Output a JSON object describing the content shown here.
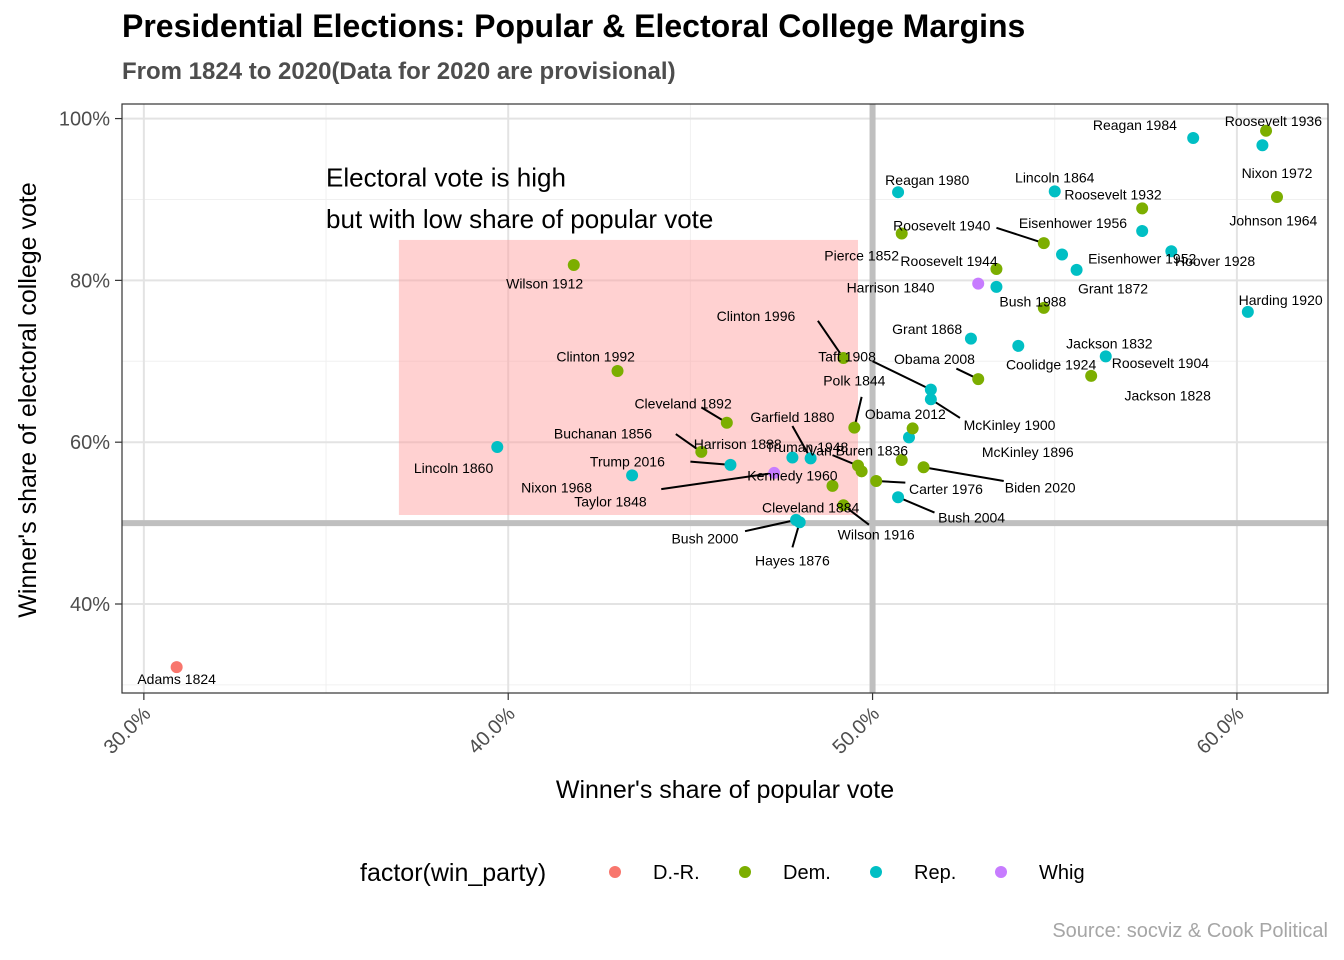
{
  "title": "Presidential Elections: Popular & Electoral College Margins",
  "subtitle": "From 1824 to 2020(Data for 2020 are provisional)",
  "source": "Source: socviz & Cook Political",
  "chart_data": {
    "type": "scatter",
    "xlabel": "Winner's share of popular vote",
    "ylabel": "Winner's share of electoral college vote",
    "xlim": [
      29.4,
      62.5
    ],
    "ylim": [
      29.0,
      101.8
    ],
    "x_ticks": [
      30,
      40,
      50,
      60
    ],
    "x_tick_labels": [
      "30.0%",
      "40.0%",
      "50.0%",
      "60.0%"
    ],
    "y_ticks": [
      40,
      60,
      80,
      100
    ],
    "y_tick_labels": [
      "40%",
      "60%",
      "80%",
      "100%"
    ],
    "grid": true,
    "reference_lines": {
      "x": 50,
      "y": 50
    },
    "highlight_box": {
      "x": [
        37,
        49.6
      ],
      "y": [
        51,
        85
      ],
      "color": "#ff9999"
    },
    "annotation": [
      "Electoral vote is high",
      "but with low share of popular vote"
    ],
    "legend": {
      "title": "factor(win_party)",
      "position": "bottom",
      "entries": [
        {
          "name": "D.-R.",
          "color": "#F8766D"
        },
        {
          "name": "Dem.",
          "color": "#7CAE00"
        },
        {
          "name": "Rep.",
          "color": "#00BFC4"
        },
        {
          "name": "Whig",
          "color": "#C77CFF"
        }
      ]
    },
    "points": [
      {
        "label": "Adams 1824",
        "party": "D.-R.",
        "x": 30.9,
        "y": 32.2,
        "lx": 30.9,
        "ly": 30.7
      },
      {
        "label": "Jackson 1828",
        "party": "Dem.",
        "x": 56.0,
        "y": 68.2,
        "lx": 58.1,
        "ly": 65.8,
        "lanchor": "middle"
      },
      {
        "label": "Jackson 1832",
        "party": "Dem.",
        "x": 54.7,
        "y": 76.6,
        "lx": 56.5,
        "ly": 72.2,
        "lanchor": "middle"
      },
      {
        "label": "Van Buren 1836",
        "party": "Dem.",
        "x": 50.8,
        "y": 57.8,
        "lx": 49.6,
        "ly": 59.0,
        "lanchor": "middle"
      },
      {
        "label": "Harrison 1840",
        "party": "Whig",
        "x": 52.9,
        "y": 79.6,
        "lx": 51.7,
        "ly": 79.1,
        "lanchor": "end"
      },
      {
        "label": "Polk 1844",
        "party": "Dem.",
        "x": 49.5,
        "y": 61.8,
        "lx": 49.5,
        "ly": 67.6,
        "lanchor": "middle",
        "leader": true,
        "lex": 49.7,
        "ley": 65.6
      },
      {
        "label": "Taylor 1848",
        "party": "Whig",
        "x": 47.3,
        "y": 56.2,
        "lx": 43.8,
        "ly": 52.7,
        "lanchor": "end",
        "leader": true,
        "lex": 44.2,
        "ley": 54.2
      },
      {
        "label": "Pierce 1852",
        "party": "Dem.",
        "x": 50.8,
        "y": 85.8,
        "lx": 49.7,
        "ly": 83.1,
        "lanchor": "middle"
      },
      {
        "label": "Buchanan 1856",
        "party": "Dem.",
        "x": 45.3,
        "y": 58.8,
        "lx": 42.6,
        "ly": 61.1,
        "lanchor": "middle",
        "leader": true,
        "lex": 44.6,
        "ley": 61.0
      },
      {
        "label": "Lincoln 1860",
        "party": "Rep.",
        "x": 39.7,
        "y": 59.4,
        "lx": 38.5,
        "ly": 56.8,
        "lanchor": "middle"
      },
      {
        "label": "Lincoln 1864",
        "party": "Rep.",
        "x": 55.0,
        "y": 91.0,
        "lx": 55.0,
        "ly": 92.7,
        "lanchor": "middle"
      },
      {
        "label": "Grant 1868",
        "party": "Rep.",
        "x": 52.7,
        "y": 72.8,
        "lx": 51.5,
        "ly": 74.0,
        "lanchor": "middle"
      },
      {
        "label": "Grant 1872",
        "party": "Rep.",
        "x": 55.6,
        "y": 81.3,
        "lx": 56.6,
        "ly": 79.0,
        "lanchor": "middle"
      },
      {
        "label": "Hayes 1876",
        "party": "Rep.",
        "x": 48.0,
        "y": 50.1,
        "lx": 47.8,
        "ly": 45.4,
        "lanchor": "middle",
        "leader": true,
        "lex": 47.8,
        "ley": 47.0
      },
      {
        "label": "Garfield 1880",
        "party": "Rep.",
        "x": 48.3,
        "y": 58.0,
        "lx": 47.8,
        "ly": 63.1,
        "lanchor": "middle",
        "leader": true,
        "lex": 47.8,
        "ley": 62.0
      },
      {
        "label": "Cleveland 1884",
        "party": "Dem.",
        "x": 48.9,
        "y": 54.6,
        "lx": 48.3,
        "ly": 51.9,
        "lanchor": "middle"
      },
      {
        "label": "Harrison 1888",
        "party": "Rep.",
        "x": 47.8,
        "y": 58.1,
        "lx": 46.3,
        "ly": 59.8,
        "lanchor": "middle"
      },
      {
        "label": "Cleveland 1892",
        "party": "Dem.",
        "x": 46.0,
        "y": 62.4,
        "lx": 44.8,
        "ly": 64.8,
        "lanchor": "middle",
        "leader": true,
        "lex": 45.3,
        "ley": 64.3
      },
      {
        "label": "McKinley 1896",
        "party": "Rep.",
        "x": 51.0,
        "y": 60.6,
        "lx": 53.0,
        "ly": 58.8,
        "lanchor": "start"
      },
      {
        "label": "McKinley 1900",
        "party": "Rep.",
        "x": 51.6,
        "y": 65.3,
        "lx": 52.5,
        "ly": 62.1,
        "lanchor": "start",
        "leader": true,
        "lex": 52.4,
        "ley": 63.0
      },
      {
        "label": "Roosevelt 1904",
        "party": "Rep.",
        "x": 56.4,
        "y": 70.6,
        "lx": 57.9,
        "ly": 69.8,
        "lanchor": "middle"
      },
      {
        "label": "Taft 1908",
        "party": "Rep.",
        "x": 51.6,
        "y": 66.5,
        "lx": 49.3,
        "ly": 70.6,
        "lanchor": "middle",
        "leader": true,
        "lex": 50.0,
        "ley": 70.0
      },
      {
        "label": "Wilson 1912",
        "party": "Dem.",
        "x": 41.8,
        "y": 81.9,
        "lx": 41.0,
        "ly": 79.6,
        "lanchor": "middle"
      },
      {
        "label": "Wilson 1916",
        "party": "Dem.",
        "x": 49.2,
        "y": 52.2,
        "lx": 50.1,
        "ly": 48.6,
        "lanchor": "middle",
        "leader": true,
        "lex": 49.9,
        "ley": 49.8
      },
      {
        "label": "Harding 1920",
        "party": "Rep.",
        "x": 60.3,
        "y": 76.1,
        "lx": 61.2,
        "ly": 77.6,
        "lanchor": "middle"
      },
      {
        "label": "Coolidge 1924",
        "party": "Rep.",
        "x": 54.0,
        "y": 71.9,
        "lx": 54.9,
        "ly": 69.6,
        "lanchor": "middle"
      },
      {
        "label": "Hoover 1928",
        "party": "Rep.",
        "x": 58.2,
        "y": 83.6,
        "lx": 59.4,
        "ly": 82.4,
        "lanchor": "middle"
      },
      {
        "label": "Roosevelt 1932",
        "party": "Dem.",
        "x": 57.4,
        "y": 88.9,
        "lx": 56.6,
        "ly": 90.6,
        "lanchor": "middle"
      },
      {
        "label": "Roosevelt 1936",
        "party": "Dem.",
        "x": 60.8,
        "y": 98.5,
        "lx": 61.0,
        "ly": 99.7,
        "lanchor": "middle"
      },
      {
        "label": "Roosevelt 1940",
        "party": "Dem.",
        "x": 54.7,
        "y": 84.6,
        "lx": 51.9,
        "ly": 86.8,
        "lanchor": "middle",
        "leader": true,
        "lex": 53.4,
        "ley": 86.5
      },
      {
        "label": "Roosevelt 1944",
        "party": "Dem.",
        "x": 53.4,
        "y": 81.4,
        "lx": 52.1,
        "ly": 82.4,
        "lanchor": "middle"
      },
      {
        "label": "Truman 1948",
        "party": "Dem.",
        "x": 49.6,
        "y": 57.1,
        "lx": 48.2,
        "ly": 59.4,
        "lanchor": "middle",
        "leader": true,
        "lex": 48.9,
        "ley": 58.4
      },
      {
        "label": "Eisenhower 1952",
        "party": "Rep.",
        "x": 55.2,
        "y": 83.2,
        "lx": 57.4,
        "ly": 82.7,
        "lanchor": "middle"
      },
      {
        "label": "Eisenhower 1956",
        "party": "Rep.",
        "x": 57.4,
        "y": 86.1,
        "lx": 55.5,
        "ly": 87.1,
        "lanchor": "middle"
      },
      {
        "label": "Kennedy 1960",
        "party": "Dem.",
        "x": 49.7,
        "y": 56.4,
        "lx": 47.8,
        "ly": 55.9,
        "lanchor": "middle"
      },
      {
        "label": "Johnson 1964",
        "party": "Dem.",
        "x": 61.1,
        "y": 90.3,
        "lx": 61.0,
        "ly": 87.4,
        "lanchor": "middle"
      },
      {
        "label": "Nixon 1968",
        "party": "Rep.",
        "x": 43.4,
        "y": 55.9,
        "lx": 42.3,
        "ly": 54.4,
        "lanchor": "end"
      },
      {
        "label": "Nixon 1972",
        "party": "Rep.",
        "x": 60.7,
        "y": 96.7,
        "lx": 61.1,
        "ly": 93.3,
        "lanchor": "middle"
      },
      {
        "label": "Carter 1976",
        "party": "Dem.",
        "x": 50.1,
        "y": 55.2,
        "lx": 51.0,
        "ly": 54.2,
        "lanchor": "start",
        "leader": true,
        "lex": 50.9,
        "ley": 55.0
      },
      {
        "label": "Reagan 1980",
        "party": "Rep.",
        "x": 50.7,
        "y": 90.9,
        "lx": 51.5,
        "ly": 92.4,
        "lanchor": "middle"
      },
      {
        "label": "Reagan 1984",
        "party": "Rep.",
        "x": 58.8,
        "y": 97.6,
        "lx": 57.2,
        "ly": 99.2,
        "lanchor": "middle"
      },
      {
        "label": "Bush 1988",
        "party": "Rep.",
        "x": 53.4,
        "y": 79.2,
        "lx": 54.4,
        "ly": 77.4,
        "lanchor": "middle"
      },
      {
        "label": "Clinton 1992",
        "party": "Dem.",
        "x": 43.0,
        "y": 68.8,
        "lx": 42.4,
        "ly": 70.6,
        "lanchor": "middle"
      },
      {
        "label": "Clinton 1996",
        "party": "Dem.",
        "x": 49.2,
        "y": 70.4,
        "lx": 46.8,
        "ly": 75.6,
        "lanchor": "middle",
        "leader": true,
        "lex": 48.5,
        "ley": 75.0
      },
      {
        "label": "Bush 2000",
        "party": "Rep.",
        "x": 47.9,
        "y": 50.4,
        "lx": 45.4,
        "ly": 48.1,
        "lanchor": "middle",
        "leader": true,
        "lex": 46.5,
        "ley": 49.0
      },
      {
        "label": "Bush 2004",
        "party": "Rep.",
        "x": 50.7,
        "y": 53.2,
        "lx": 51.8,
        "ly": 50.7,
        "lanchor": "start",
        "leader": true,
        "lex": 51.7,
        "ley": 51.3
      },
      {
        "label": "Obama 2008",
        "party": "Dem.",
        "x": 52.9,
        "y": 67.8,
        "lx": 51.7,
        "ly": 70.3,
        "lanchor": "middle",
        "leader": true,
        "lex": 52.3,
        "ley": 69.1
      },
      {
        "label": "Obama 2012",
        "party": "Dem.",
        "x": 51.1,
        "y": 61.7,
        "lx": 50.9,
        "ly": 63.5,
        "lanchor": "middle"
      },
      {
        "label": "Trump 2016",
        "party": "Rep.",
        "x": 46.1,
        "y": 57.2,
        "lx": 44.3,
        "ly": 57.6,
        "lanchor": "end",
        "leader": true,
        "lex": 45.0,
        "ley": 57.6
      },
      {
        "label": "Biden 2020",
        "party": "Dem.",
        "x": 51.4,
        "y": 56.9,
        "lx": 54.6,
        "ly": 54.4,
        "lanchor": "middle",
        "leader": true,
        "lex": 53.6,
        "ley": 55.2
      }
    ]
  }
}
